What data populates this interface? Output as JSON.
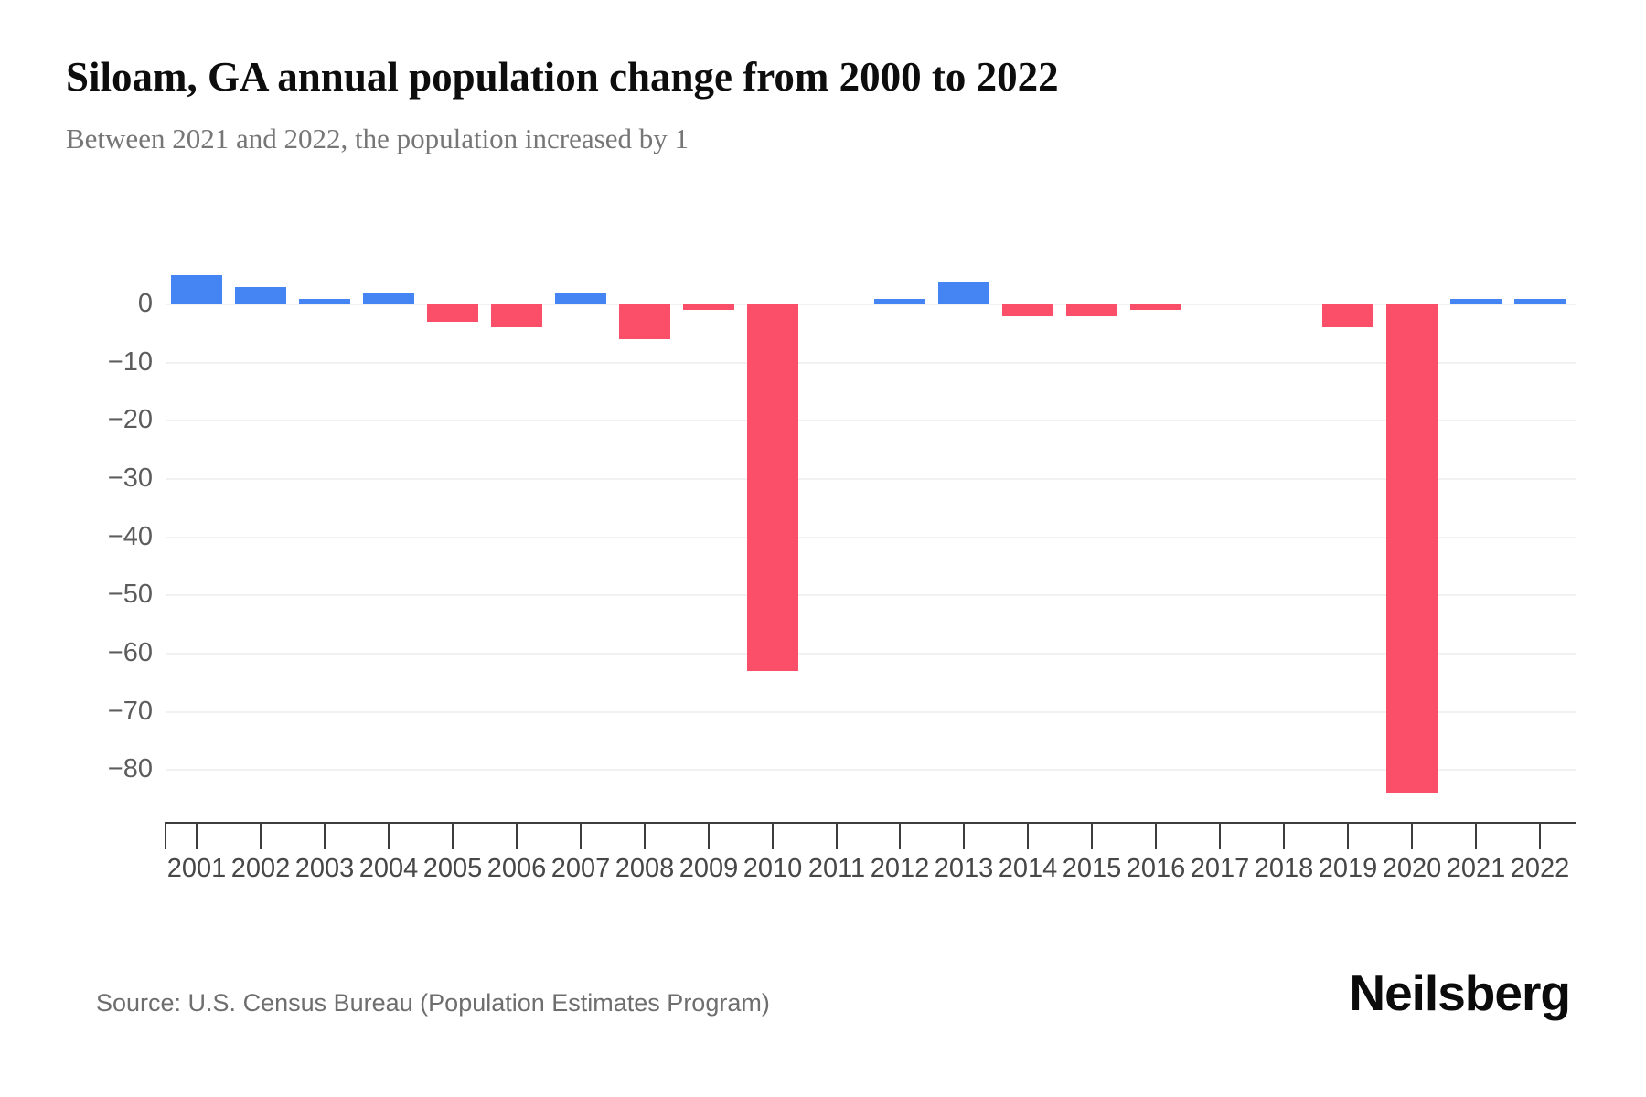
{
  "header": {
    "title": "Siloam, GA annual population change from 2000 to 2022",
    "subtitle": "Between 2021 and 2022, the population increased by 1"
  },
  "chart_data": {
    "type": "bar",
    "title": "Siloam, GA annual population change from 2000 to 2022",
    "categories": [
      "2001",
      "2002",
      "2003",
      "2004",
      "2005",
      "2006",
      "2007",
      "2008",
      "2009",
      "2010",
      "2011",
      "2012",
      "2013",
      "2014",
      "2015",
      "2016",
      "2017",
      "2018",
      "2019",
      "2020",
      "2021",
      "2022"
    ],
    "values": [
      5,
      3,
      1,
      2,
      -3,
      -4,
      2,
      -6,
      -1,
      -63,
      0,
      1,
      4,
      -2,
      -2,
      -1,
      0,
      0,
      -4,
      -84,
      1,
      1
    ],
    "xlabel": "",
    "ylabel": "",
    "ylim": [
      -88,
      8
    ],
    "yticks": [
      0,
      -10,
      -20,
      -30,
      -40,
      -50,
      -60,
      -70,
      -80
    ],
    "grid": true,
    "legend": false,
    "positive_color": "#4584F3",
    "negative_color": "#FA4E69"
  },
  "footer": {
    "source": "Source: U.S. Census Bureau (Population Estimates Program)",
    "brand": "Neilsberg"
  }
}
